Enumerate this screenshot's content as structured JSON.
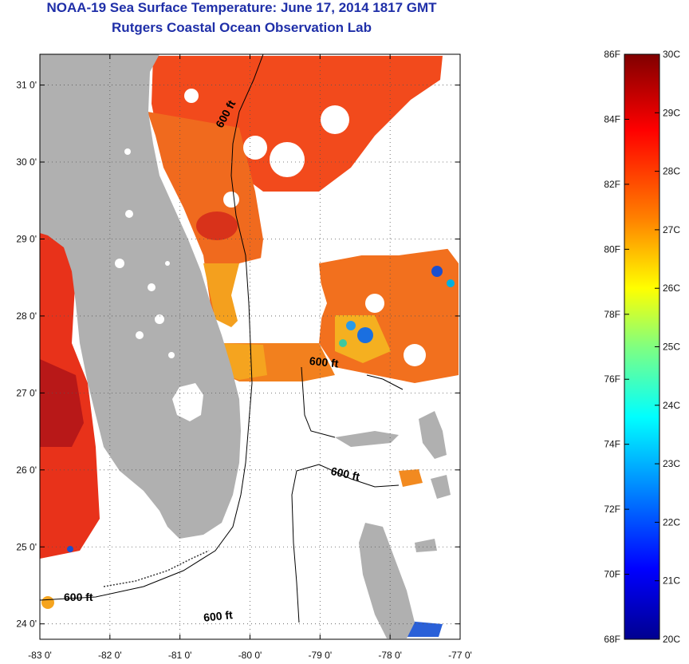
{
  "title": {
    "line1": "NOAA-19 Sea Surface Temperature:  June 17, 2014 1817 GMT",
    "line2": "Rutgers Coastal Ocean Observation Lab"
  },
  "map": {
    "lon_range": [
      -83,
      -77
    ],
    "lat_range": [
      23.8,
      31.4
    ],
    "lon_ticks": [
      "-83 0'",
      "-82 0'",
      "-81 0'",
      "-80 0'",
      "-79 0'",
      "-78 0'",
      "-77 0'"
    ],
    "lat_ticks": [
      "31 0'",
      "30 0'",
      "29 0'",
      "28 0'",
      "27 0'",
      "26 0'",
      "25 0'",
      "24 0'"
    ],
    "lon_values": [
      -83,
      -82,
      -81,
      -80,
      -79,
      -78,
      -77
    ],
    "lat_values": [
      31,
      30,
      29,
      28,
      27,
      26,
      25,
      24
    ],
    "land_color": "#b0b0b0",
    "grid": "dotted",
    "contour_labels": [
      {
        "text": "600 ft",
        "lon": -80.3,
        "lat": 30.6,
        "rotate": -62
      },
      {
        "text": "600 ft",
        "lon": -78.95,
        "lat": 27.35,
        "rotate": 6
      },
      {
        "text": "600 ft",
        "lon": -78.65,
        "lat": 25.9,
        "rotate": 12
      },
      {
        "text": "600 ft",
        "lon": -82.45,
        "lat": 24.3,
        "rotate": 0
      },
      {
        "text": "600 ft",
        "lon": -80.45,
        "lat": 24.05,
        "rotate": -6
      }
    ]
  },
  "colorbar": {
    "f_labels": [
      "86F",
      "84F",
      "82F",
      "80F",
      "78F",
      "76F",
      "74F",
      "72F",
      "70F",
      "68F"
    ],
    "f_values": [
      86,
      84,
      82,
      80,
      78,
      76,
      74,
      72,
      70,
      68
    ],
    "c_labels": [
      "30C",
      "29C",
      "28C",
      "27C",
      "26C",
      "25C",
      "24C",
      "23C",
      "22C",
      "21C",
      "20C"
    ],
    "c_values": [
      30,
      29,
      28,
      27,
      26,
      25,
      24,
      23,
      22,
      21,
      20
    ],
    "range_c": [
      20,
      30
    ],
    "colors": [
      "#00008f",
      "#0000ff",
      "#0080ff",
      "#00ffff",
      "#80ff80",
      "#ffff00",
      "#ff8000",
      "#ff0000",
      "#800000"
    ]
  }
}
